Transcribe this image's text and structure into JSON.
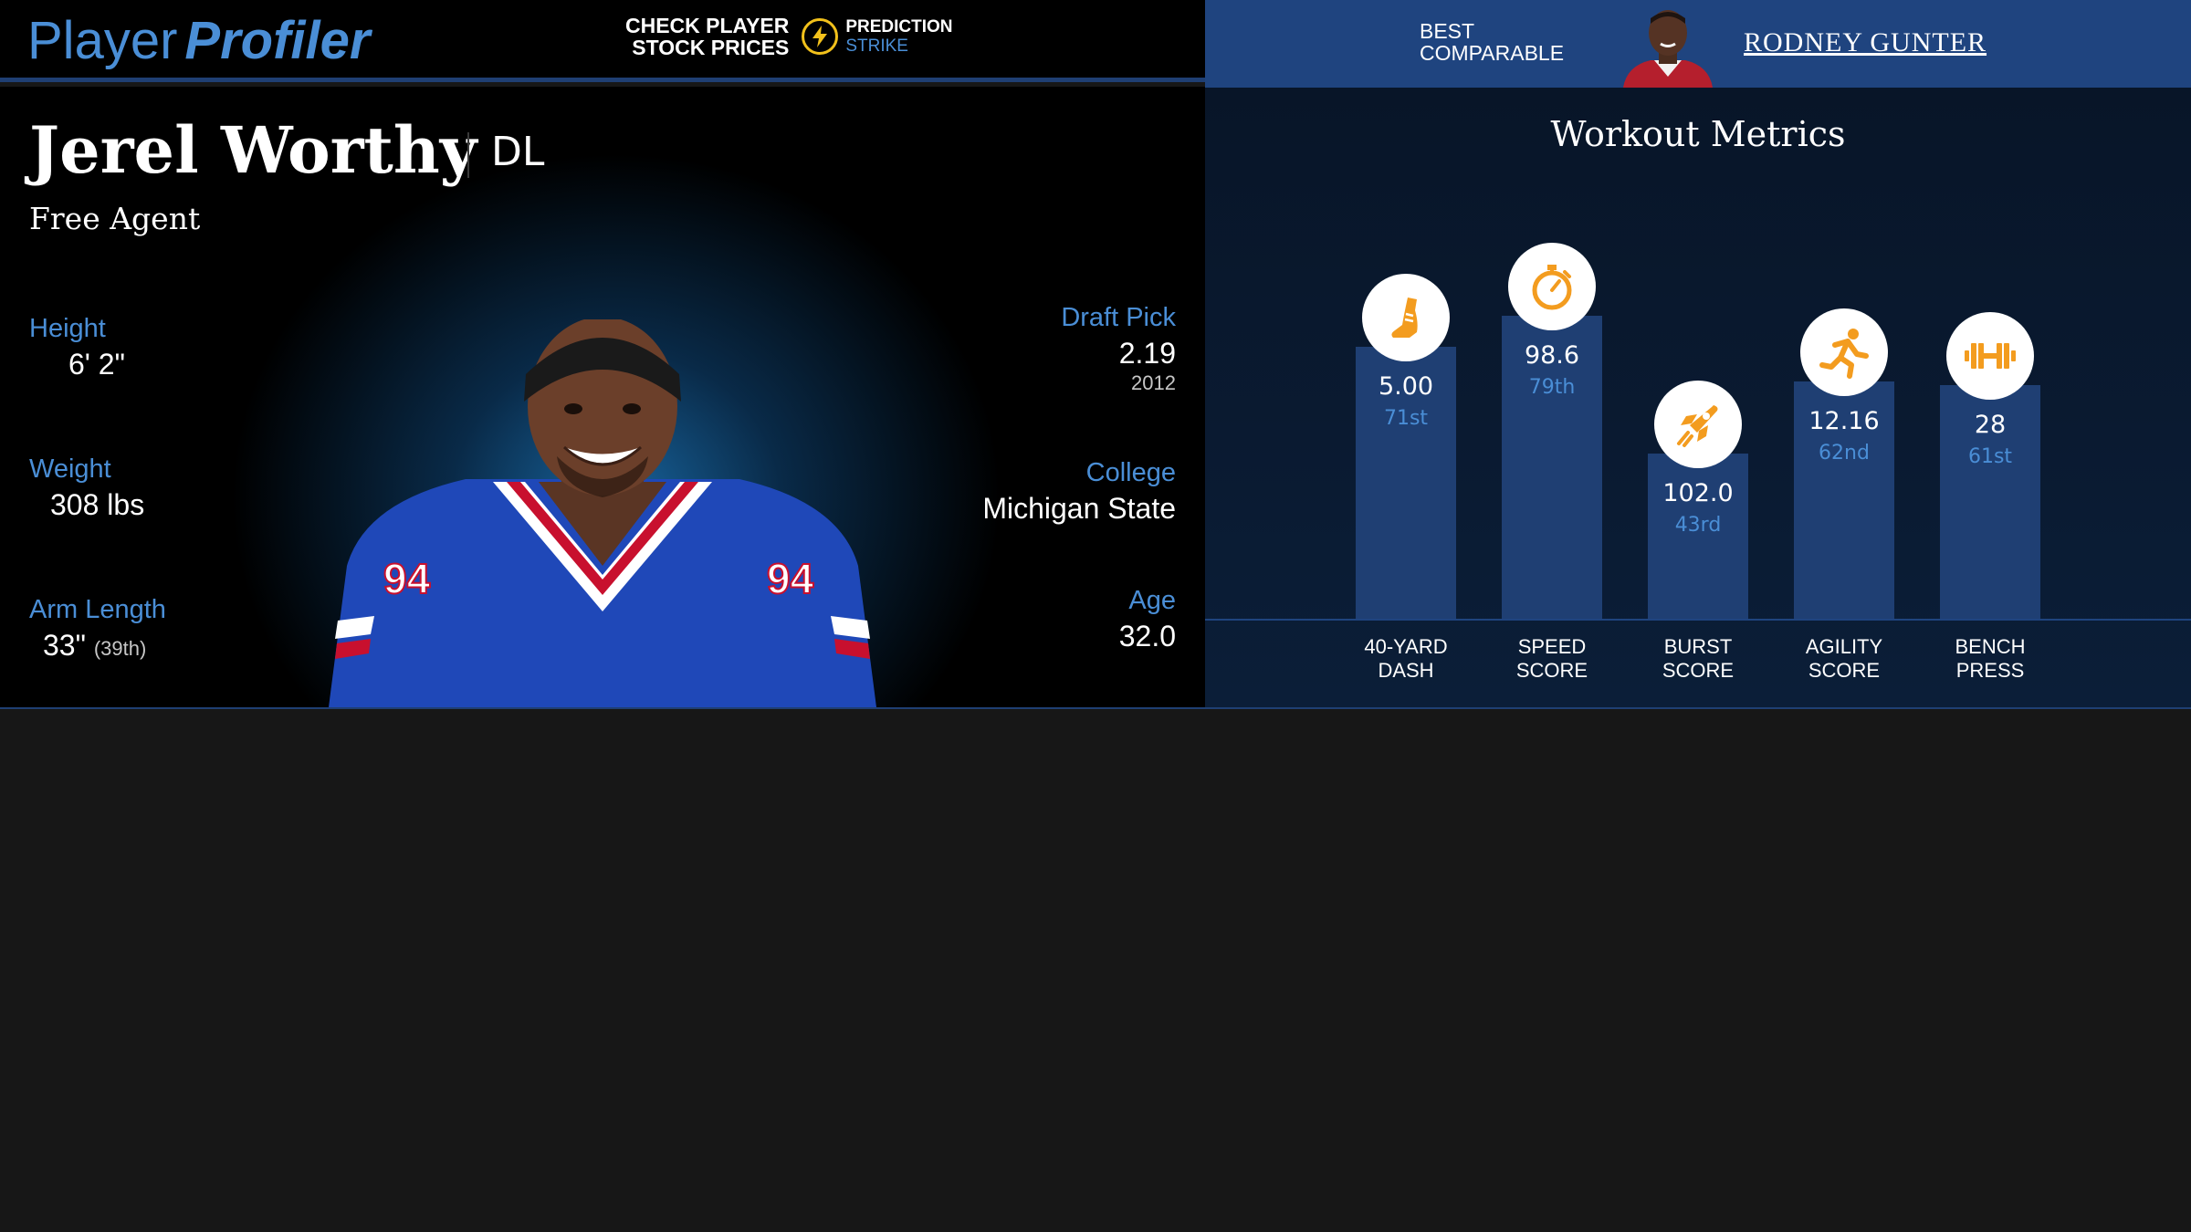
{
  "logo": {
    "part1": "Player",
    "part2": "Profiler"
  },
  "promo": {
    "line1": "CHECK PLAYER",
    "line2": "STOCK PRICES",
    "brand_line1": "PREDICTION",
    "brand_line2": "STRIKE",
    "icon": "lightning-bolt-icon"
  },
  "comparable": {
    "label_line1": "BEST",
    "label_line2": "COMPARABLE",
    "name": "RODNEY GUNTER"
  },
  "player": {
    "name": "Jerel Worthy",
    "position": "DL",
    "team": "Free Agent",
    "height_label": "Height",
    "height": "6' 2\"",
    "weight_label": "Weight",
    "weight": "308 lbs",
    "arm_label": "Arm Length",
    "arm": "33\"",
    "arm_pct": "(39th)",
    "draft_label": "Draft Pick",
    "draft_pick": "2.19",
    "draft_year": "2012",
    "college_label": "College",
    "college": "Michigan State",
    "age_label": "Age",
    "age": "32.0"
  },
  "colors": {
    "accent": "#4a8ed6",
    "bar": "#1f3f73",
    "icon": "#f39c1f",
    "header_blue": "#1f447f"
  },
  "chart_data": {
    "type": "bar",
    "title": "Workout Metrics",
    "categories": [
      "40-YARD DASH",
      "SPEED SCORE",
      "BURST SCORE",
      "AGILITY SCORE",
      "BENCH PRESS"
    ],
    "label_lines": [
      [
        "40-YARD",
        "DASH"
      ],
      [
        "SPEED",
        "SCORE"
      ],
      [
        "BURST",
        "SCORE"
      ],
      [
        "AGILITY",
        "SCORE"
      ],
      [
        "BENCH",
        "PRESS"
      ]
    ],
    "values": [
      "5.00",
      "98.6",
      "102.0",
      "12.16",
      "28"
    ],
    "ranks": [
      "71st",
      "79th",
      "43rd",
      "62nd",
      "61st"
    ],
    "percentiles": [
      71,
      79,
      43,
      62,
      61
    ],
    "icons": [
      "shoe-icon",
      "stopwatch-icon",
      "rocket-icon",
      "runner-icon",
      "dumbbell-icon"
    ]
  }
}
